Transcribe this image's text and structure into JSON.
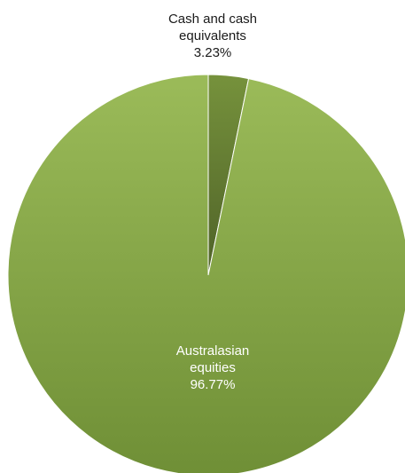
{
  "chart_data": {
    "type": "pie",
    "start_angle_deg": 0,
    "direction": "clockwise",
    "slices": [
      {
        "label_lines": [
          "Cash and cash",
          "equivalents"
        ],
        "value_label": "3.23%",
        "value": 3.23,
        "color": "#76923c",
        "shadow_color": "#4f6228",
        "label_color": "#1a1a1a"
      },
      {
        "label_lines": [
          "Australasian",
          "equities"
        ],
        "value_label": "96.77%",
        "value": 96.77,
        "color": "#9bbb59",
        "shadow_color": "#6f8f36",
        "label_color": "#ffffff"
      }
    ]
  }
}
